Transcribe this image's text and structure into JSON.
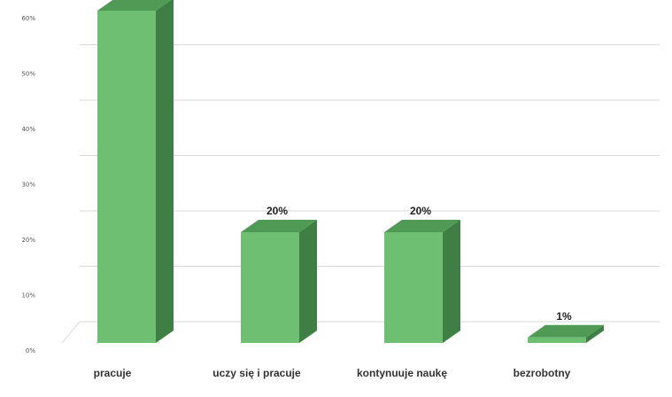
{
  "chart_data": {
    "type": "bar",
    "title": "",
    "xlabel": "",
    "ylabel": "",
    "categories": [
      "pracuje",
      "uczy się i pracuje",
      "kontynuuje  naukę",
      "bezrobotny"
    ],
    "values": [
      60,
      20,
      20,
      1
    ],
    "data_labels": [
      "",
      "20%",
      "20%",
      "1%"
    ],
    "y_ticks": [
      "0%",
      "10%",
      "20%",
      "30%",
      "40%",
      "50%",
      "60%"
    ],
    "y_tick_values": [
      0,
      10,
      20,
      30,
      40,
      50,
      60
    ],
    "ylim": [
      0,
      60
    ],
    "grid": true,
    "legend": "none",
    "colors": {
      "front": "#6fbf73",
      "side": "#3f7f45",
      "top": "#4f9a55"
    }
  }
}
